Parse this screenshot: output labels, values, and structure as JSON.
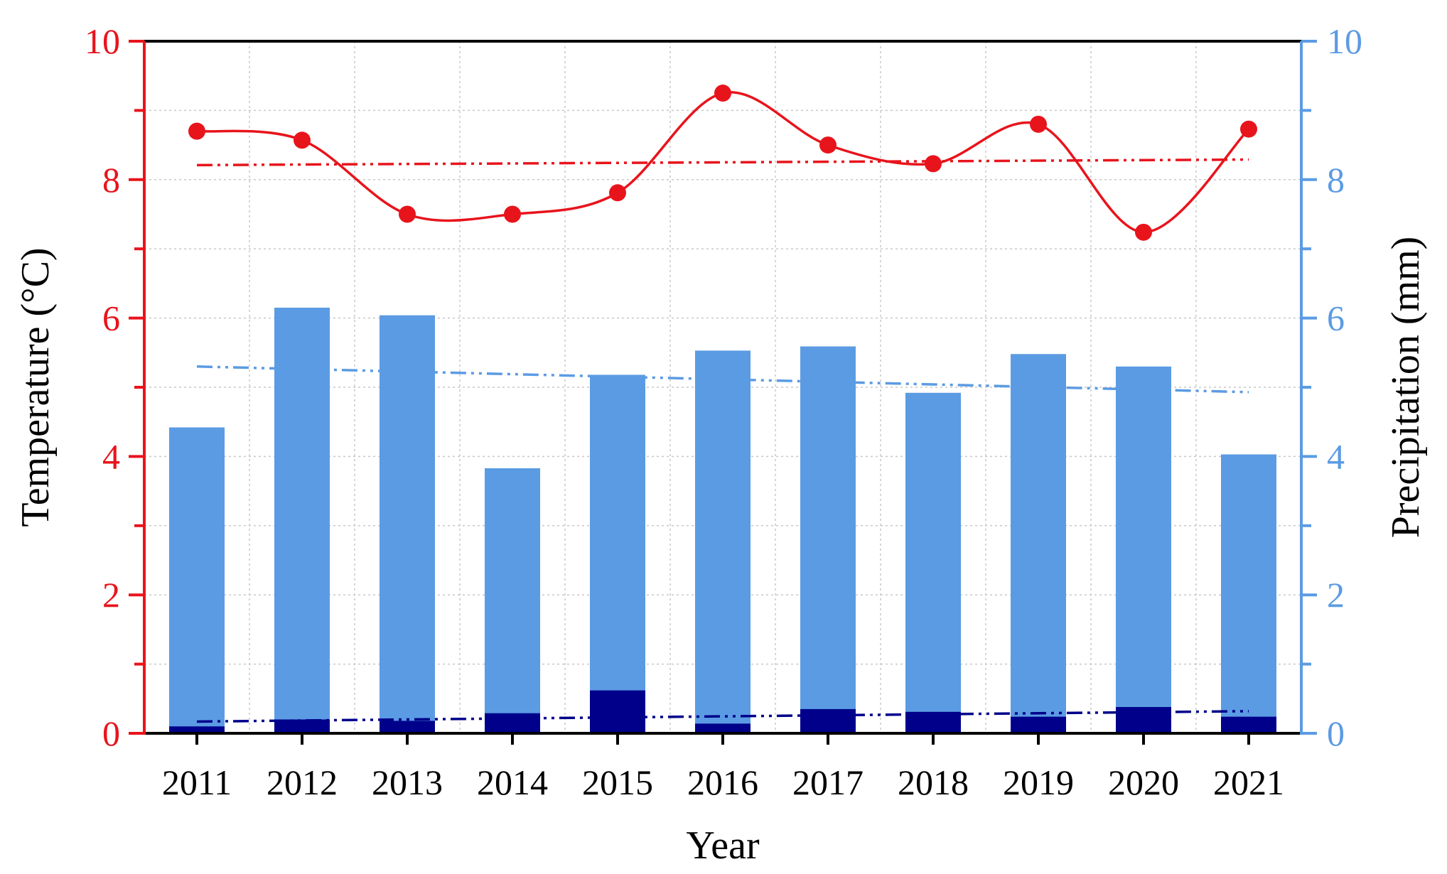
{
  "chart_data": {
    "type": "bar",
    "categories": [
      "2011",
      "2012",
      "2013",
      "2014",
      "2015",
      "2016",
      "2017",
      "2018",
      "2019",
      "2020",
      "2021"
    ],
    "xlabel": "Year",
    "ylabel_left": "Temperature (°C)",
    "ylabel_right": "Precipitation (mm)",
    "ylim_left": [
      0,
      10
    ],
    "ylim_right": [
      0,
      10
    ],
    "yticks": [
      "0",
      "2",
      "4",
      "6",
      "8",
      "10"
    ],
    "grid": true,
    "series": [
      {
        "kind": "bar",
        "axis": "right",
        "color": "#5b9be3",
        "values": [
          4.42,
          6.15,
          6.04,
          3.83,
          5.18,
          5.53,
          5.59,
          4.92,
          5.48,
          5.3,
          4.03
        ],
        "trend": [
          5.3,
          4.93
        ]
      },
      {
        "kind": "bar",
        "axis": "right",
        "color": "#00008b",
        "values": [
          0.1,
          0.2,
          0.18,
          0.29,
          0.62,
          0.14,
          0.35,
          0.31,
          0.24,
          0.38,
          0.24
        ],
        "trend": [
          0.17,
          0.32
        ]
      },
      {
        "kind": "line",
        "axis": "left",
        "color": "#e8141c",
        "values": [
          8.7,
          8.57,
          7.5,
          7.5,
          7.81,
          9.25,
          8.5,
          8.23,
          8.8,
          7.24,
          8.73
        ],
        "trend": [
          8.21,
          8.29
        ]
      }
    ]
  }
}
